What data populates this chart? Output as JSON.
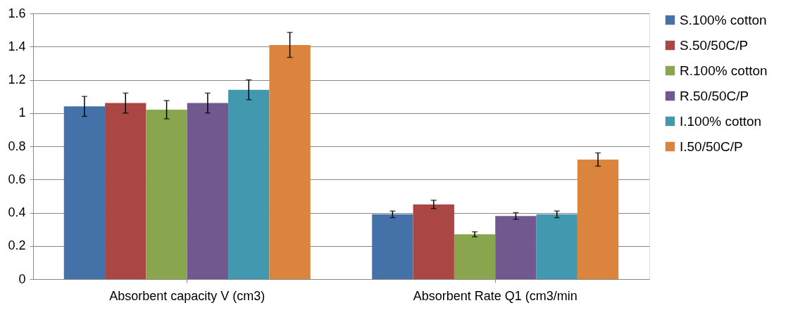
{
  "chart_data": {
    "type": "bar",
    "categories": [
      "Absorbent capacity V (cm3)",
      "Absorbent Rate Q1 (cm3/min"
    ],
    "series": [
      {
        "name": "S.100% cotton",
        "color": "#4472a8",
        "values": [
          1.04,
          0.39
        ],
        "errors": [
          0.06,
          0.02
        ]
      },
      {
        "name": "S.50/50C/P",
        "color": "#aa4644",
        "values": [
          1.06,
          0.45
        ],
        "errors": [
          0.06,
          0.025
        ]
      },
      {
        "name": "R.100% cotton",
        "color": "#89a54e",
        "values": [
          1.02,
          0.27
        ],
        "errors": [
          0.055,
          0.015
        ]
      },
      {
        "name": "R.50/50C/P",
        "color": "#71588f",
        "values": [
          1.06,
          0.38
        ],
        "errors": [
          0.06,
          0.02
        ]
      },
      {
        "name": "I.100% cotton",
        "color": "#4198af",
        "values": [
          1.14,
          0.39
        ],
        "errors": [
          0.06,
          0.02
        ]
      },
      {
        "name": "I.50/50C/P",
        "color": "#db843d",
        "values": [
          1.41,
          0.72
        ],
        "errors": [
          0.075,
          0.04
        ]
      }
    ],
    "ylim": [
      0,
      1.6
    ],
    "yticks": [
      0,
      0.2,
      0.4,
      0.6,
      0.8,
      1,
      1.2,
      1.4,
      1.6
    ],
    "grid": "y",
    "legend": "right"
  }
}
